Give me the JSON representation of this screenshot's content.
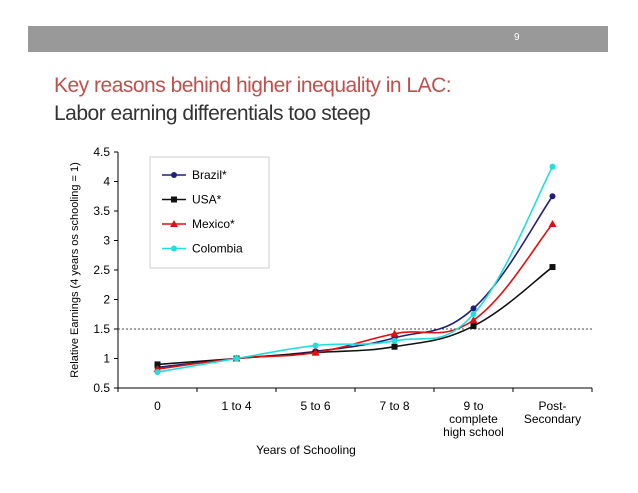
{
  "slide": {
    "number": "9",
    "title_line1": "Key reasons behind higher inequality in LAC:",
    "title_line2": "Labor earning differentials too steep"
  },
  "chart_data": {
    "type": "line",
    "title": "",
    "xlabel": "Years of Schooling",
    "ylabel": "Relative Earnings (4 years os schooling = 1)",
    "categories": [
      [
        "0"
      ],
      [
        "1 to 4"
      ],
      [
        "5 to 6"
      ],
      [
        "7 to 8"
      ],
      [
        "9 to",
        "complete",
        "high school"
      ],
      [
        "Post-",
        "Secondary"
      ]
    ],
    "yticks": [
      "0.5",
      "1",
      "1.5",
      "2",
      "2.5",
      "3",
      "3.5",
      "4",
      "4.5"
    ],
    "ylim": [
      0.5,
      4.5
    ],
    "reference_line": 1.5,
    "legend_position": "upper-left",
    "series": [
      {
        "name": "Brazil*",
        "color": "#1f1f7a",
        "marker": "circle",
        "values": [
          0.85,
          1.0,
          1.12,
          1.35,
          1.85,
          3.75
        ]
      },
      {
        "name": "USA*",
        "color": "#111111",
        "marker": "square",
        "values": [
          0.9,
          1.0,
          1.1,
          1.2,
          1.55,
          2.55
        ]
      },
      {
        "name": "Mexico*",
        "color": "#dd1111",
        "marker": "triangle",
        "values": [
          0.82,
          1.0,
          1.1,
          1.42,
          1.65,
          3.28
        ]
      },
      {
        "name": "Colombia",
        "color": "#22dddd",
        "marker": "circle",
        "values": [
          0.77,
          1.0,
          1.22,
          1.3,
          1.75,
          4.25
        ]
      }
    ]
  }
}
